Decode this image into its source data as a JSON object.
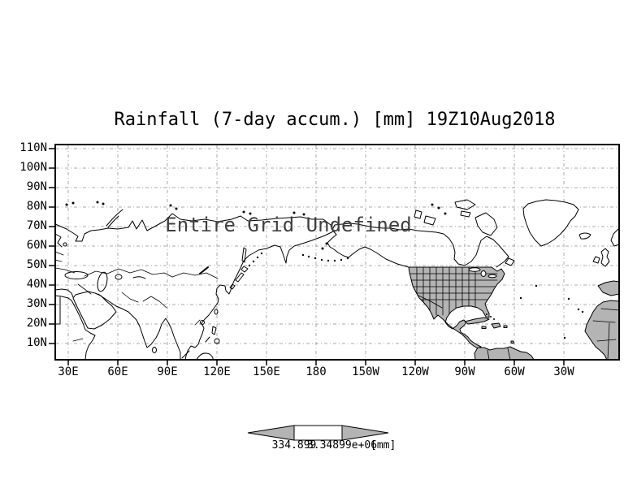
{
  "title": "Rainfall (7-day accum.) [mm] 19Z10Aug2018",
  "overlay_message": "Entire Grid Undefined",
  "axes": {
    "y_ticks": [
      "110N",
      "100N",
      "90N",
      "80N",
      "70N",
      "60N",
      "50N",
      "40N",
      "30N",
      "20N",
      "10N"
    ],
    "x_ticks": [
      "30E",
      "60E",
      "90E",
      "120E",
      "150E",
      "180",
      "150W",
      "120W",
      "90W",
      "60W",
      "30W"
    ]
  },
  "colorbar": {
    "left_label": "334.899",
    "right_label": "3.34899e+06",
    "units_label": "[mm]"
  },
  "colors": {
    "land_fill": "#b4b4b4",
    "grid_line": "#a9a9a9",
    "coast_line": "#000000",
    "background": "#ffffff",
    "overlay_text": "#3f3f3f"
  }
}
